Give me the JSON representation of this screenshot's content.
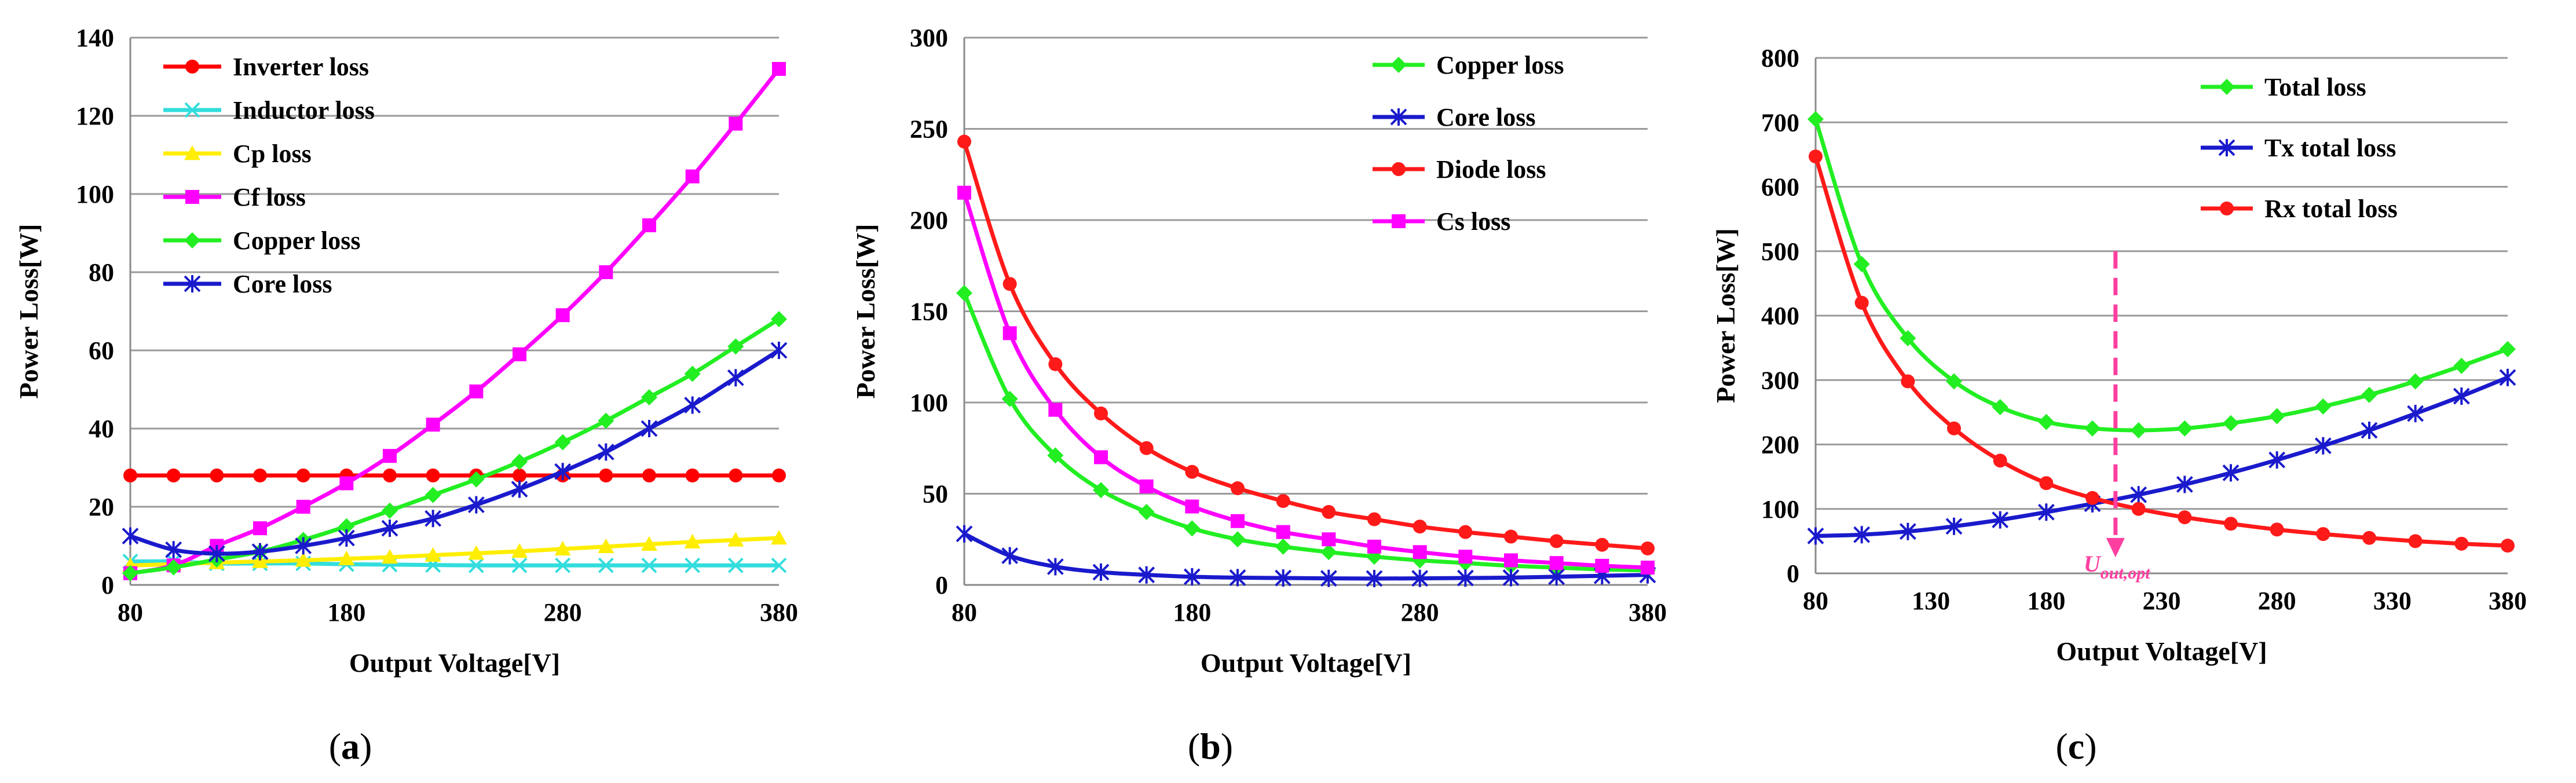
{
  "chart_data": [
    {
      "type": "line",
      "panel_label": "a",
      "xlabel": "Output Voltage[V]",
      "ylabel": "Power Loss[W]",
      "xlim": [
        80,
        380
      ],
      "ylim": [
        0,
        140
      ],
      "xticks": [
        80,
        180,
        280,
        380
      ],
      "yticks": [
        0,
        20,
        40,
        60,
        80,
        100,
        120,
        140
      ],
      "grid": true,
      "legend_position": "top-left",
      "x": [
        80,
        100,
        120,
        140,
        160,
        180,
        200,
        220,
        240,
        260,
        280,
        300,
        320,
        340,
        360,
        380
      ],
      "series": [
        {
          "name": "Inverter loss",
          "color": "#ff0000",
          "marker": "circle",
          "values": [
            28,
            28,
            28,
            28,
            28,
            28,
            28,
            28,
            28,
            28,
            28,
            28,
            28,
            28,
            28,
            28
          ]
        },
        {
          "name": "Inductor loss",
          "color": "#33dddd",
          "marker": "x",
          "values": [
            6,
            6,
            5.5,
            5.5,
            5.5,
            5.3,
            5.2,
            5.1,
            5,
            5,
            5,
            5,
            5,
            5,
            5,
            5
          ]
        },
        {
          "name": "Cp loss",
          "color": "#ffee00",
          "marker": "triangle",
          "values": [
            5,
            5.3,
            5.7,
            6,
            6.3,
            6.7,
            7.1,
            7.6,
            8.1,
            8.6,
            9.2,
            9.8,
            10.4,
            11,
            11.5,
            12
          ]
        },
        {
          "name": "Cf loss",
          "color": "#ff00ff",
          "marker": "square",
          "values": [
            3,
            5,
            10,
            14.5,
            20,
            26,
            33,
            41,
            49.5,
            59,
            69,
            80,
            92,
            104.5,
            118,
            132
          ]
        },
        {
          "name": "Copper loss",
          "color": "#22ee22",
          "marker": "diamond",
          "values": [
            3,
            4.5,
            6.5,
            8.5,
            11.5,
            15,
            19,
            23,
            27,
            31.5,
            36.5,
            42,
            48,
            54,
            61,
            68
          ]
        },
        {
          "name": "Core loss",
          "color": "#1a1acc",
          "marker": "star",
          "values": [
            12.5,
            9,
            8,
            8.5,
            10,
            12,
            14.5,
            17,
            20.5,
            24.5,
            29,
            34,
            40,
            46,
            53,
            60
          ]
        }
      ]
    },
    {
      "type": "line",
      "panel_label": "b",
      "xlabel": "Output Voltage[V]",
      "ylabel": "Power Loss[W]",
      "xlim": [
        80,
        380
      ],
      "ylim": [
        0,
        300
      ],
      "xticks": [
        80,
        180,
        280,
        380
      ],
      "yticks": [
        0,
        50,
        100,
        150,
        200,
        250,
        300
      ],
      "grid": true,
      "legend_position": "top-right",
      "x": [
        80,
        100,
        120,
        140,
        160,
        180,
        200,
        220,
        240,
        260,
        280,
        300,
        320,
        340,
        360,
        380
      ],
      "series": [
        {
          "name": "Copper loss",
          "color": "#22ee22",
          "marker": "diamond",
          "values": [
            160,
            102,
            71,
            52,
            40,
            31,
            25,
            21,
            18,
            15.5,
            13.5,
            12,
            10.5,
            9.5,
            8.5,
            8
          ]
        },
        {
          "name": "Core loss",
          "color": "#1a1acc",
          "marker": "star",
          "values": [
            28,
            16,
            10,
            7,
            5.5,
            4.5,
            4,
            3.8,
            3.6,
            3.5,
            3.6,
            3.8,
            4,
            4.5,
            5,
            5.5
          ]
        },
        {
          "name": "Diode loss",
          "color": "#ff1a1a",
          "marker": "circle",
          "values": [
            243,
            165,
            121,
            94,
            75,
            62,
            53,
            46,
            40,
            36,
            32,
            29,
            26.5,
            24,
            22,
            20
          ]
        },
        {
          "name": "Cs loss",
          "color": "#ff00ff",
          "marker": "square",
          "values": [
            215,
            138,
            96,
            70,
            54,
            43,
            35,
            29,
            25,
            21,
            18,
            15.5,
            13.5,
            12,
            10.5,
            9.5
          ]
        }
      ]
    },
    {
      "type": "line",
      "panel_label": "c",
      "xlabel": "Output Voltage[V]",
      "ylabel": "Power Loss[W]",
      "xlim": [
        80,
        380
      ],
      "ylim": [
        0,
        800
      ],
      "xticks": [
        80,
        130,
        180,
        230,
        280,
        330,
        380
      ],
      "yticks": [
        0,
        100,
        200,
        300,
        400,
        500,
        600,
        700,
        800
      ],
      "grid": true,
      "legend_position": "top-right",
      "x": [
        80,
        100,
        120,
        140,
        160,
        180,
        200,
        220,
        240,
        260,
        280,
        300,
        320,
        340,
        360,
        380
      ],
      "series": [
        {
          "name": "Total loss",
          "color": "#22ee22",
          "marker": "diamond",
          "values": [
            705,
            480,
            365,
            298,
            258,
            235,
            225,
            222,
            225,
            233,
            244,
            259,
            277,
            298,
            322,
            348
          ]
        },
        {
          "name": "Tx total loss",
          "color": "#1a1acc",
          "marker": "star",
          "values": [
            58,
            60,
            65,
            73,
            83,
            95,
            108,
            122,
            138,
            156,
            176,
            198,
            222,
            248,
            275,
            304
          ]
        },
        {
          "name": "Rx total loss",
          "color": "#ff1a1a",
          "marker": "circle",
          "values": [
            647,
            420,
            298,
            225,
            175,
            140,
            117,
            100,
            87,
            77,
            68,
            61,
            55,
            50,
            46,
            43
          ]
        }
      ],
      "annotation": {
        "text_main": "U",
        "text_sub": "out,opt",
        "x": 210,
        "color": "#ff3fa0"
      }
    }
  ]
}
